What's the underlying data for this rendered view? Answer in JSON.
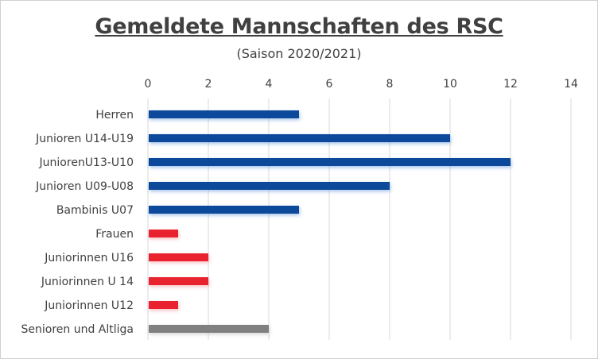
{
  "chart_data": {
    "type": "bar",
    "orientation": "horizontal",
    "title": "Gemeldete Mannschaften des RSC",
    "subtitle": "(Saison 2020/2021)",
    "xlim": [
      0,
      14
    ],
    "xticks": [
      0,
      2,
      4,
      6,
      8,
      10,
      12,
      14
    ],
    "grid": true,
    "axis_position": "top",
    "categories": [
      "Herren",
      "Junioren U14-U19",
      "JuniorenU13-U10",
      "Junioren U09-U08",
      "Bambinis U07",
      "Frauen",
      "Juniorinnen  U16",
      "Juniorinnen U 14",
      "Juniorinnen U12",
      "Senioren und Altliga"
    ],
    "values": [
      5,
      10,
      12,
      8,
      5,
      1,
      2,
      2,
      1,
      4
    ],
    "bar_colors": [
      "#0b4a9b",
      "#0b4a9b",
      "#0b4a9b",
      "#0b4a9b",
      "#0b4a9b",
      "#e8202f",
      "#e8202f",
      "#e8202f",
      "#e8202f",
      "#808080"
    ]
  }
}
